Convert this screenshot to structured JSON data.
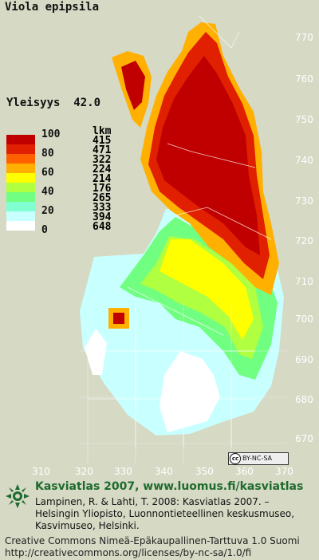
{
  "title": "Viola epipsila",
  "frequency": {
    "label": "Yleisyys",
    "value": "42.0"
  },
  "legend": {
    "count_header": "lkm",
    "percent_labels": [
      "100",
      "80",
      "60",
      "40",
      "20",
      "0"
    ],
    "colors": [
      "#c00000",
      "#e02000",
      "#ff6000",
      "#ffb000",
      "#ffff00",
      "#b0ff40",
      "#70ff80",
      "#80ffd0",
      "#c8ffff",
      "#ffffff"
    ],
    "counts": [
      "415",
      "471",
      "322",
      "224",
      "214",
      "176",
      "265",
      "333",
      "394",
      "648"
    ]
  },
  "axes": {
    "y_ticks": [
      "770",
      "760",
      "750",
      "740",
      "730",
      "720",
      "710",
      "700",
      "690",
      "680",
      "670"
    ],
    "x_ticks": [
      "310",
      "320",
      "330",
      "340",
      "350",
      "360",
      "370"
    ]
  },
  "license_badge": {
    "cc": "cc",
    "text": "BY-NC-SA"
  },
  "footer": {
    "site": "Kasviatlas 2007, www.luomus.fi/kasviatlas",
    "citation_lines": [
      "Lampinen, R. & Lahti, T. 2008: Kasviatlas 2007. –",
      "Helsingin Yliopisto, Luonnontieteellinen keskusmuseo,",
      "Kasvimuseo, Helsinki."
    ],
    "license_lines": [
      "Creative Commons Nimeä-Epäkaupallinen-Tarttuva 1.0 Suomi",
      "http://creativecommons.org/licenses/by-nc-sa/1.0/fi"
    ]
  }
}
